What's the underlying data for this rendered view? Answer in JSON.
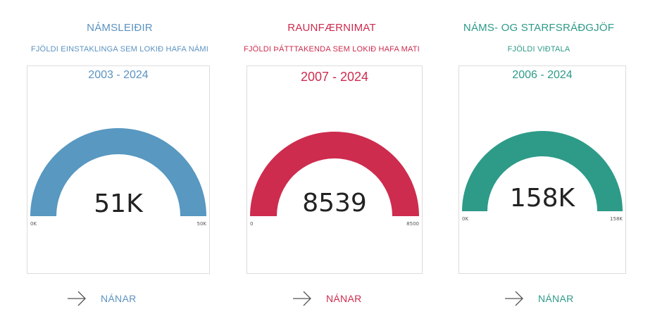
{
  "panels": [
    {
      "title": "NÁMSLEIÐIR",
      "subtitle": "FJÖLDI EINSTAKLINGA SEM LOKIÐ HAFA NÁMI",
      "range": "2003 - 2024",
      "value_label": "51K",
      "min_label": "0K",
      "max_label": "50K",
      "value": 51000,
      "max": 50000,
      "link_label": "NÁNAR",
      "color": "#5898c1"
    },
    {
      "title": "RAUNFÆRNIMAT",
      "subtitle": "FJÖLDI ÞÁTTTAKENDA SEM LOKIÐ HAFA MATI",
      "range": "2007 - 2024",
      "value_label": "8539",
      "min_label": "0",
      "max_label": "8500",
      "value": 8539,
      "max": 8500,
      "link_label": "NÁNAR",
      "color": "#cd2c4e"
    },
    {
      "title": "NÁMS- OG STARFSRÁÐGJÖF",
      "subtitle": "FJÖLDI VIÐTALA",
      "range": "2006 - 2024",
      "value_label": "158K",
      "min_label": "0K",
      "max_label": "158K",
      "value": 158000,
      "max": 158000,
      "link_label": "NÁNAR",
      "color": "#2d9b88"
    }
  ]
}
